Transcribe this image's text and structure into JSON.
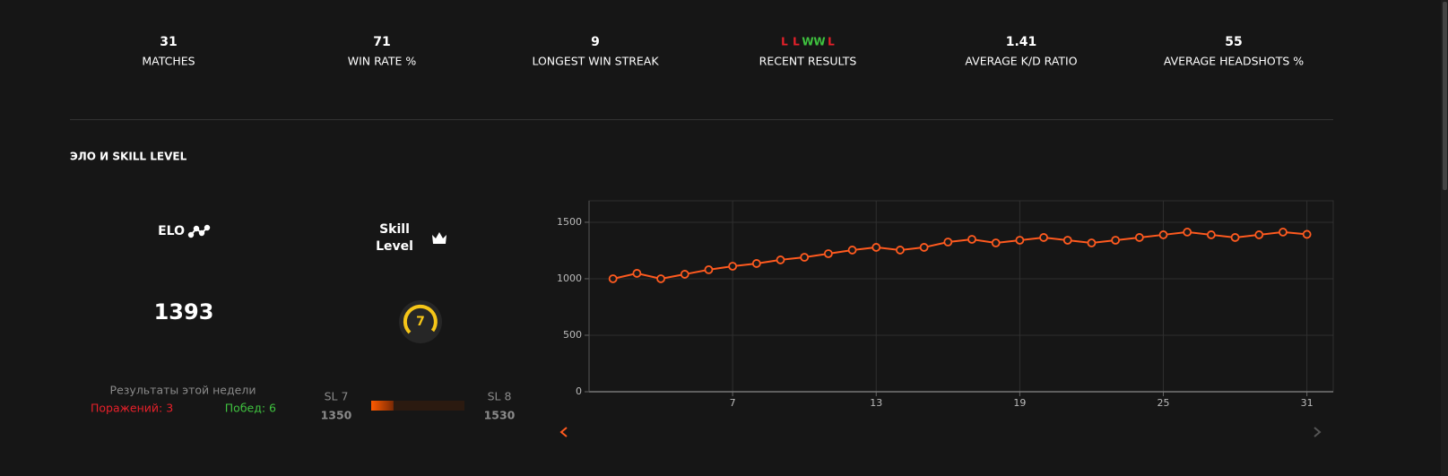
{
  "stats": [
    {
      "value": "31",
      "label": "MATCHES"
    },
    {
      "value": "71",
      "label": "WIN RATE %"
    },
    {
      "value": "9",
      "label": "LONGEST WIN STREAK"
    },
    {
      "value": [
        "L",
        "L",
        "W",
        "W",
        "L"
      ],
      "label": "RECENT RESULTS"
    },
    {
      "value": "1.41",
      "label": "AVERAGE K/D RATIO"
    },
    {
      "value": "55",
      "label": "AVERAGE HEADSHOTS %"
    }
  ],
  "result_colors": {
    "L": "#e8202a",
    "W": "#3fc23f"
  },
  "section_title": "ЭЛО И SKILL LEVEL",
  "elo": {
    "label": "ELO",
    "value": "1393"
  },
  "skill_level": {
    "label": [
      "Skill",
      "Level"
    ],
    "value": "7"
  },
  "week": {
    "title": "Результаты этой недели",
    "losses": "Поражений: 3",
    "wins": "Побед: 6"
  },
  "progress": {
    "from_label": "SL 7",
    "from_value": 1350,
    "to_label": "SL 8",
    "to_value": 1530,
    "current": 1393
  },
  "chart_data": {
    "type": "line",
    "x": [
      2,
      3,
      4,
      5,
      6,
      7,
      8,
      9,
      10,
      11,
      12,
      13,
      14,
      15,
      16,
      17,
      18,
      19,
      20,
      21,
      22,
      23,
      24,
      25,
      26,
      27,
      28,
      29,
      30,
      31
    ],
    "values": [
      1000,
      1048,
      1000,
      1040,
      1080,
      1111,
      1135,
      1167,
      1190,
      1222,
      1254,
      1278,
      1254,
      1278,
      1325,
      1349,
      1317,
      1341,
      1365,
      1341,
      1317,
      1341,
      1365,
      1389,
      1413,
      1389,
      1365,
      1389,
      1413,
      1393
    ],
    "color": "#ff5a1f",
    "xlim": [
      1,
      32.1
    ],
    "ylim": [
      0,
      1690
    ],
    "xticks": [
      7,
      13,
      19,
      25,
      31
    ],
    "yticks": [
      0,
      500,
      1000,
      1500
    ],
    "grid": true
  }
}
